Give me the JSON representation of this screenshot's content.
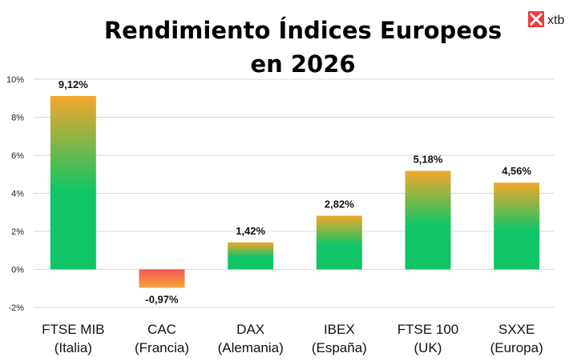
{
  "chart_data": {
    "type": "bar",
    "title_lines": [
      "Rendimiento Índices Europeos",
      "en 2026"
    ],
    "categories": [
      [
        "FTSE MIB",
        "(Italia)"
      ],
      [
        "CAC",
        "(Francia)"
      ],
      [
        "DAX",
        "(Alemania)"
      ],
      [
        "IBEX",
        "(España)"
      ],
      [
        "FTSE 100",
        "(UK)"
      ],
      [
        "SXXE",
        "(Europa)"
      ]
    ],
    "values": [
      9.12,
      -0.97,
      1.42,
      2.82,
      5.18,
      4.56
    ],
    "value_labels": [
      "9,12%",
      "-0,97%",
      "1,42%",
      "2,82%",
      "5,18%",
      "4,56%"
    ],
    "y_ticks": [
      10,
      8,
      6,
      4,
      2,
      0,
      -2
    ],
    "y_tick_labels": [
      "10%",
      "8%",
      "6%",
      "4%",
      "2%",
      "0%",
      "-2%"
    ],
    "ylim": [
      -2,
      10
    ],
    "xlabel": "",
    "ylabel": "",
    "grid": true,
    "colors": {
      "positive_bottom": "#10c566",
      "positive_top": "#f2a72a",
      "negative_top": "#f45858",
      "negative_bottom": "#f7a43a",
      "grid": "#d9d9d9"
    }
  },
  "logo": {
    "text": "xtb",
    "icon": "xtb-x-icon",
    "color": "#f23a3a"
  }
}
